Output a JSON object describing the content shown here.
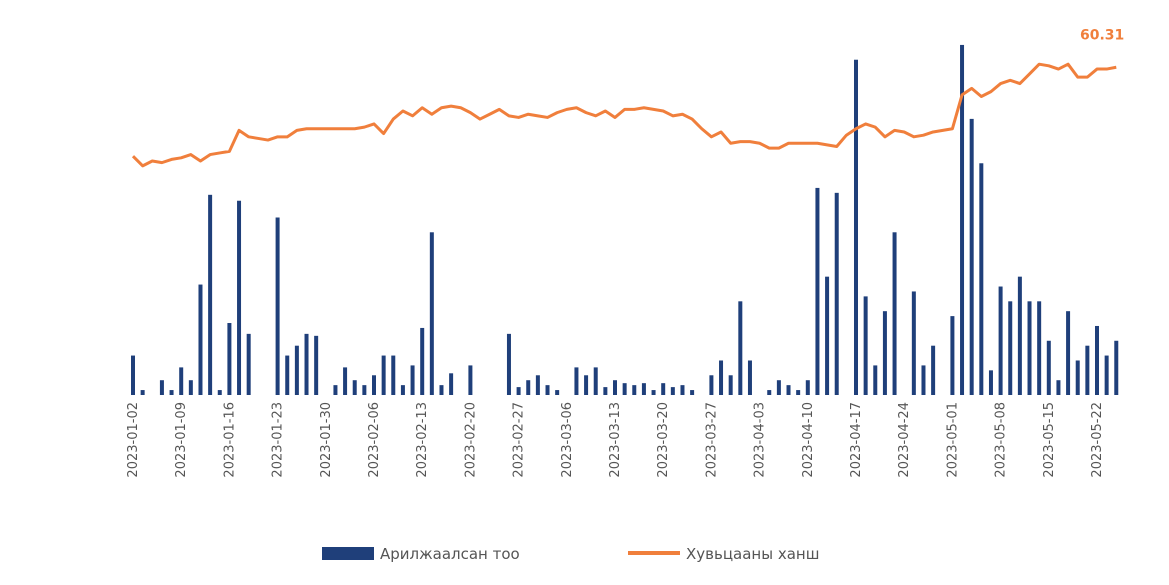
{
  "chart_data": {
    "type": "combo",
    "categories": [
      "2023-01-02",
      null,
      null,
      null,
      null,
      "2023-01-09",
      null,
      null,
      null,
      null,
      "2023-01-16",
      null,
      null,
      null,
      null,
      "2023-01-23",
      null,
      null,
      null,
      null,
      "2023-01-30",
      null,
      null,
      null,
      null,
      "2023-02-06",
      null,
      null,
      null,
      null,
      "2023-02-13",
      null,
      null,
      null,
      null,
      "2023-02-20",
      null,
      null,
      null,
      null,
      "2023-02-27",
      null,
      null,
      null,
      null,
      "2023-03-06",
      null,
      null,
      null,
      null,
      "2023-03-13",
      null,
      null,
      null,
      null,
      "2023-03-20",
      null,
      null,
      null,
      null,
      "2023-03-27",
      null,
      null,
      null,
      null,
      "2023-04-03",
      null,
      null,
      null,
      null,
      "2023-04-10",
      null,
      null,
      null,
      null,
      "2023-04-17",
      null,
      null,
      null,
      null,
      "2023-04-24",
      null,
      null,
      null,
      null,
      "2023-05-01",
      null,
      null,
      null,
      null,
      "2023-05-08",
      null,
      null,
      null,
      null,
      "2023-05-15",
      null,
      null,
      null,
      null,
      "2023-05-22",
      null,
      null
    ],
    "series": [
      {
        "name": "Арилжаалсан тоо",
        "type": "bar",
        "color": "#1f3f7a",
        "values": [
          40,
          5,
          0,
          15,
          5,
          28,
          15,
          112,
          203,
          5,
          73,
          197,
          62,
          0,
          0,
          180,
          40,
          50,
          62,
          60,
          0,
          10,
          28,
          15,
          10,
          20,
          40,
          40,
          10,
          30,
          68,
          165,
          10,
          22,
          0,
          30,
          0,
          0,
          0,
          62,
          8,
          15,
          20,
          10,
          5,
          0,
          28,
          20,
          28,
          8,
          15,
          12,
          10,
          12,
          5,
          12,
          8,
          10,
          5,
          0,
          20,
          35,
          20,
          95,
          35,
          0,
          5,
          15,
          10,
          5,
          15,
          210,
          120,
          205,
          0,
          340,
          100,
          30,
          85,
          165,
          0,
          105,
          30,
          50,
          0,
          80,
          355,
          280,
          235,
          25,
          110,
          95,
          120,
          95,
          95,
          55,
          15,
          85,
          35,
          50,
          70,
          40,
          55
        ]
      },
      {
        "name": "Хувьцааны ханш",
        "type": "line",
        "axis": "y2",
        "color": "#f07f3c",
        "values": [
          54.8,
          54.2,
          54.5,
          54.4,
          54.6,
          54.7,
          54.9,
          54.5,
          54.9,
          55.0,
          55.1,
          56.4,
          56.0,
          55.9,
          55.8,
          56.0,
          56.0,
          56.4,
          56.5,
          56.5,
          56.5,
          56.5,
          56.5,
          56.5,
          56.6,
          56.8,
          56.2,
          57.1,
          57.6,
          57.3,
          57.8,
          57.4,
          57.8,
          57.9,
          57.8,
          57.5,
          57.1,
          57.4,
          57.7,
          57.3,
          57.2,
          57.4,
          57.3,
          57.2,
          57.5,
          57.7,
          57.8,
          57.5,
          57.3,
          57.6,
          57.2,
          57.7,
          57.7,
          57.8,
          57.7,
          57.6,
          57.3,
          57.4,
          57.1,
          56.5,
          56.0,
          56.3,
          55.6,
          55.7,
          55.7,
          55.6,
          55.3,
          55.3,
          55.6,
          55.6,
          55.6,
          55.6,
          55.5,
          55.4,
          56.1,
          56.5,
          56.8,
          56.6,
          56.0,
          56.4,
          56.3,
          56.0,
          56.1,
          56.3,
          56.4,
          56.5,
          58.6,
          59.0,
          58.5,
          58.8,
          59.3,
          59.5,
          59.3,
          59.9,
          60.5,
          60.4,
          60.2,
          60.5,
          59.7,
          59.7,
          60.2,
          60.2,
          60.31
        ]
      }
    ],
    "ylim": [
      0,
      360
    ],
    "y2lim": [
      40,
      62
    ],
    "legend": "bottom"
  }
}
